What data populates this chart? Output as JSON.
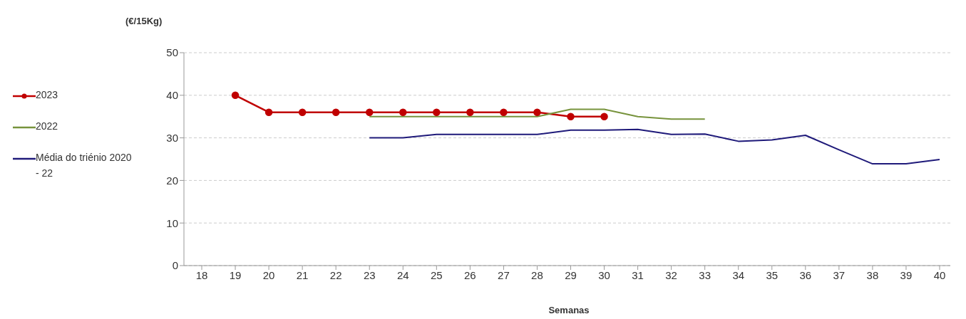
{
  "chart_data": {
    "type": "line",
    "ylabel": "(€/15Kg)",
    "xlabel": "Semanas",
    "categories": [
      "18",
      "19",
      "20",
      "21",
      "22",
      "23",
      "24",
      "25",
      "26",
      "27",
      "28",
      "29",
      "30",
      "31",
      "32",
      "33",
      "34",
      "35",
      "36",
      "37",
      "38",
      "39",
      "40"
    ],
    "series": [
      {
        "name": "2023",
        "color": "#c00000",
        "marker": "circle",
        "values": [
          null,
          40,
          36,
          36,
          36,
          36,
          36,
          36,
          36,
          36,
          36,
          35,
          35,
          null,
          null,
          null,
          null,
          null,
          null,
          null,
          null,
          null,
          null
        ]
      },
      {
        "name": "2022",
        "color": "#77933c",
        "marker": "none",
        "values": [
          null,
          null,
          null,
          null,
          null,
          35,
          35,
          35,
          35,
          35,
          35,
          36.7,
          36.7,
          35,
          34.4,
          34.4,
          null,
          null,
          null,
          null,
          null,
          null,
          null
        ]
      },
      {
        "name": "Média do triénio 2020 - 22",
        "color": "#1f1a7a",
        "marker": "none",
        "values": [
          null,
          null,
          null,
          null,
          null,
          30,
          30,
          30.8,
          30.8,
          30.8,
          30.8,
          31.8,
          31.8,
          32,
          30.8,
          30.9,
          29.2,
          29.5,
          30.6,
          27.2,
          23.9,
          23.9,
          24.9
        ]
      }
    ],
    "ylim": [
      0,
      50
    ],
    "yticks": [
      0,
      10,
      20,
      30,
      40,
      50
    ],
    "grid": "y",
    "legend": "left",
    "line_style": "solid"
  }
}
